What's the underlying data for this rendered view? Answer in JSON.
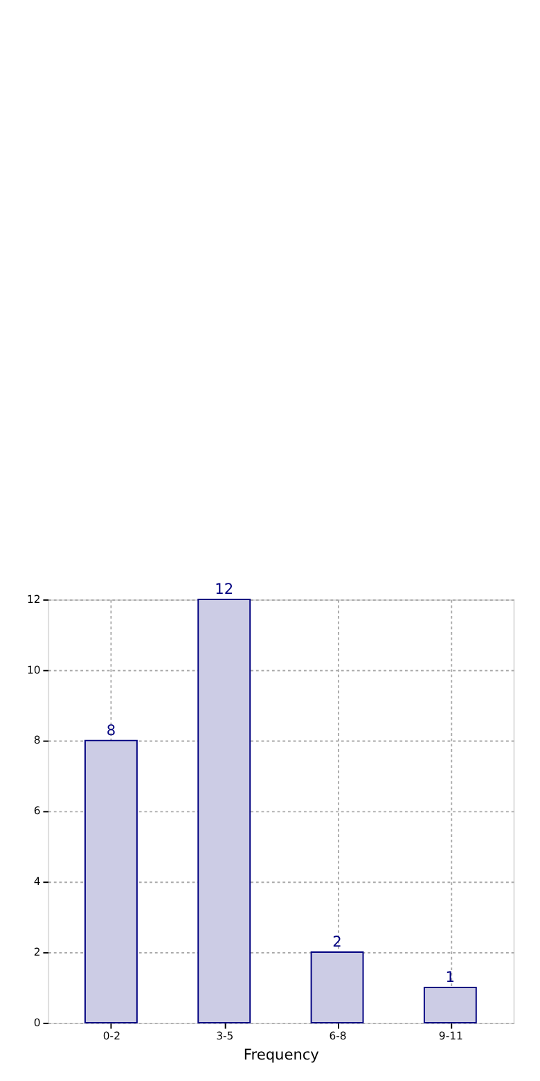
{
  "chart_data": {
    "type": "bar",
    "xlabel": "Frequency",
    "categories": [
      "0-2",
      "3-5",
      "6-8",
      "9-11"
    ],
    "values": [
      8,
      12,
      2,
      1
    ],
    "color": "#ccccE5",
    "ylim": [
      0,
      12
    ],
    "yticks": [
      0,
      2,
      4,
      6,
      8,
      10,
      12
    ],
    "grid": true,
    "data_labels": true
  }
}
